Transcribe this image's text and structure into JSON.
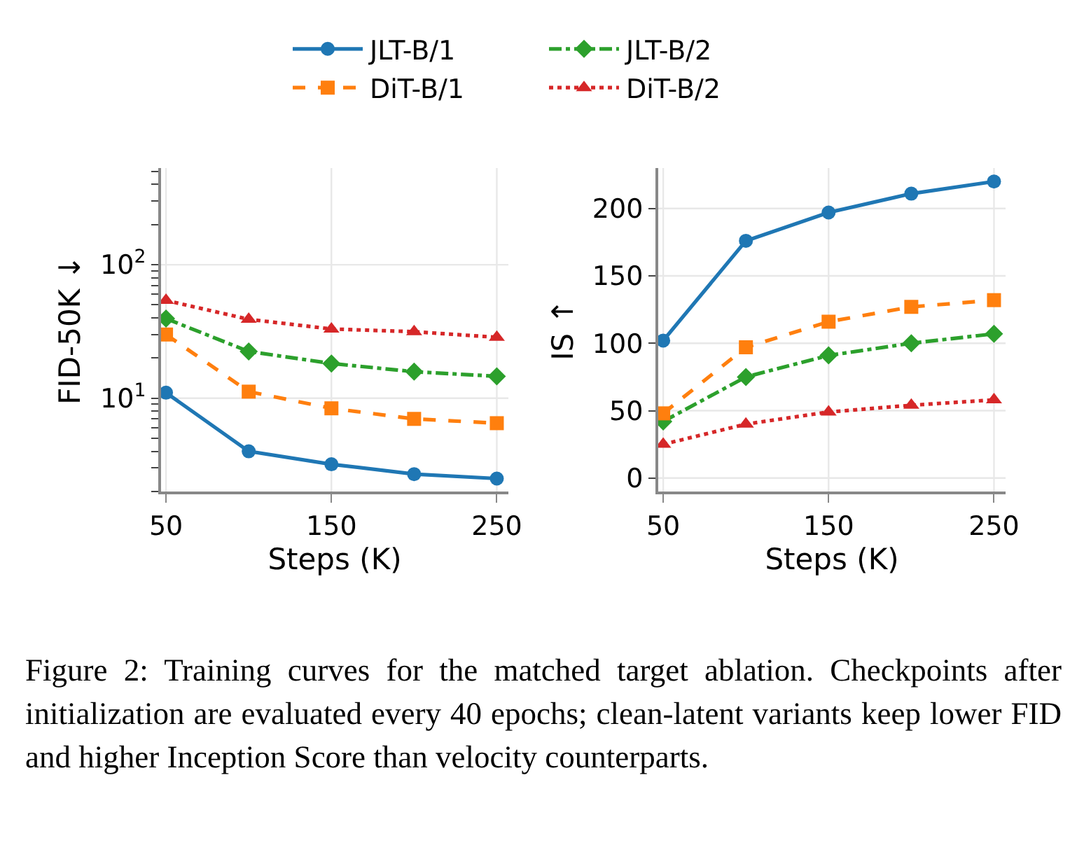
{
  "chart_data": [
    {
      "type": "line",
      "xlabel": "Steps (K)",
      "ylabel": "FID-50K ↓",
      "log": "y",
      "grid": true,
      "legend": "top",
      "x": [
        50,
        100,
        150,
        200,
        250
      ],
      "xlim": [
        47,
        257
      ],
      "xticks": [
        50,
        150,
        250
      ],
      "ylim": [
        2,
        530
      ],
      "yticks": [
        {
          "value": 2,
          "label": null
        },
        {
          "value": 3,
          "label": null
        },
        {
          "value": 4,
          "label": null
        },
        {
          "value": 5,
          "label": null
        },
        {
          "value": 6,
          "label": null
        },
        {
          "value": 7,
          "label": null
        },
        {
          "value": 8,
          "label": null
        },
        {
          "value": 9,
          "label": null
        },
        {
          "value": 10,
          "label": "10$^{1}$"
        },
        {
          "value": 20,
          "label": null
        },
        {
          "value": 30,
          "label": null
        },
        {
          "value": 40,
          "label": null
        },
        {
          "value": 50,
          "label": null
        },
        {
          "value": 60,
          "label": null
        },
        {
          "value": 70,
          "label": null
        },
        {
          "value": 80,
          "label": null
        },
        {
          "value": 90,
          "label": null
        },
        {
          "value": 100,
          "label": "10$^{2}$"
        },
        {
          "value": 200,
          "label": null
        },
        {
          "value": 300,
          "label": null
        },
        {
          "value": 400,
          "label": null
        },
        {
          "value": 500,
          "label": null
        }
      ],
      "series": [
        {
          "name": "JLT-B/1",
          "color": "#1f77b4",
          "marker": "circle",
          "line_style": "solid",
          "values": [
            11,
            4.0,
            3.2,
            2.7,
            2.5
          ]
        },
        {
          "name": "JLT-B/2",
          "color": "#2ca02c",
          "marker": "diamond",
          "line_style": "dashdot",
          "values": [
            39.5,
            22.4,
            18.2,
            15.8,
            14.6
          ]
        },
        {
          "name": "DiT-B/1",
          "color": "#ff7f0e",
          "marker": "square",
          "line_style": "dashed",
          "values": [
            30,
            11.2,
            8.4,
            7.0,
            6.5
          ]
        },
        {
          "name": "DiT-B/2",
          "color": "#d62728",
          "marker": "triangle",
          "line_style": "dotted",
          "values": [
            54,
            39,
            33,
            31.5,
            28.6
          ]
        }
      ],
      "annotations": [
        "Figure 2: Training curves for the matched target ablation. Checkpoints after initialization are evaluated every 40 epochs; clean-latent variants keep lower FID and higher Inception Score than velocity counterparts."
      ]
    },
    {
      "type": "line",
      "xlabel": "Steps (K)",
      "ylabel": "IS ↑",
      "grid": true,
      "x": [
        50,
        100,
        150,
        200,
        250
      ],
      "xlim": [
        47,
        257
      ],
      "xticks": [
        50,
        150,
        250
      ],
      "ylim": [
        -10,
        230
      ],
      "yticks": [
        0,
        50,
        100,
        150,
        200
      ],
      "series": [
        {
          "color": "#1f77b4",
          "marker": "circle",
          "line_style": "solid",
          "values": [
            102,
            176,
            197,
            211,
            220
          ]
        },
        {
          "color": "#2ca02c",
          "marker": "diamond",
          "line_style": "dashdot",
          "values": [
            42,
            75,
            91,
            100,
            107
          ]
        },
        {
          "color": "#ff7f0e",
          "marker": "square",
          "line_style": "dashed",
          "values": [
            48,
            97,
            116,
            127,
            132
          ]
        },
        {
          "color": "#d62728",
          "marker": "triangle",
          "line_style": "dotted",
          "values": [
            25,
            40,
            49,
            54,
            58
          ]
        }
      ]
    }
  ]
}
